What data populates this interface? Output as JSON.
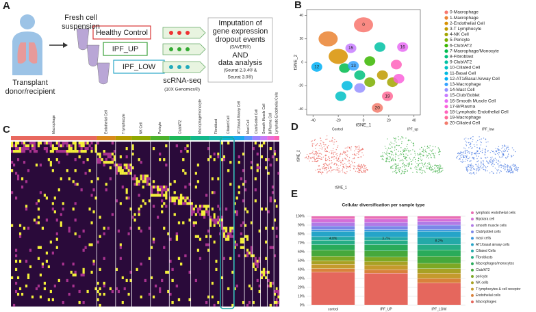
{
  "panel_labels": [
    "A",
    "B",
    "C",
    "D",
    "E"
  ],
  "workflow": {
    "fresh_cell": [
      "Fresh cell",
      "suspension"
    ],
    "samples": [
      "Healthy Control",
      "IPF_UP",
      "IPF_LOW"
    ],
    "donor": [
      "Transplant",
      "donor/recipient"
    ],
    "sequencing": [
      "scRNA-seq",
      "(10X Genomics®)"
    ],
    "analysis": [
      "Imputation of",
      "gene expression",
      "dropout events",
      "(SAVER®)",
      "AND",
      "data analysis",
      "(Seurat 2.3.4® &",
      "Seurat 3.0®)"
    ]
  },
  "heatmap": {
    "clusters": [
      {
        "name": "Macrophage",
        "color": "#e8685f"
      },
      {
        "name": "Endothelial Cell",
        "color": "#d98a1c"
      },
      {
        "name": "T lymphocyte",
        "color": "#b59c00"
      },
      {
        "name": "NK Cell",
        "color": "#8fa800"
      },
      {
        "name": "Pericyte",
        "color": "#4cb22c"
      },
      {
        "name": "Club/AT2",
        "color": "#1db85a"
      },
      {
        "name": "Macrophage/monocyte",
        "color": "#13b98c"
      },
      {
        "name": "Fibroblast",
        "color": "#14b8ad"
      },
      {
        "name": "Ciliated Cell",
        "color": "#12b6cf"
      },
      {
        "name": "AT1/basal Airway Cell",
        "color": "#1aa9ec"
      },
      {
        "name": "Mast Cell",
        "color": "#5b97ff"
      },
      {
        "name": "Club/Goblet Cell",
        "color": "#9d84ff"
      },
      {
        "name": "Smooth Muscle Cell",
        "color": "#c97bf5"
      },
      {
        "name": "B/Plasma Cell",
        "color": "#ec6bd9"
      },
      {
        "name": "Lymphatic Endothelial Cells",
        "color": "#fb64b5"
      }
    ]
  },
  "sample_tsne": {
    "x_label": "tSNE_1",
    "y_label": "tSNE_2",
    "panels": [
      {
        "title": "Control",
        "color": "#e8544c"
      },
      {
        "title": "IPF_up",
        "color": "#2ea836"
      },
      {
        "title": "IPF_low",
        "color": "#3b6fe0"
      }
    ]
  },
  "chart_data": [
    {
      "type": "scatter",
      "x_label": "tSNE_1",
      "y_label": "tSNE_2",
      "xlim": [
        -45,
        45
      ],
      "ylim": [
        -45,
        45
      ],
      "xticks": [
        -40,
        -20,
        0,
        20,
        40
      ],
      "yticks": [
        -40,
        -20,
        0,
        20,
        40
      ],
      "series": [
        {
          "name": "0-Macrophage",
          "color": "#F8766D",
          "x": [
            0
          ],
          "values": [
            32
          ],
          "label": "0"
        },
        {
          "name": "1-Macrophage",
          "color": "#EA8331",
          "x": [
            -28
          ],
          "values": [
            20
          ]
        },
        {
          "name": "2-Endothelial Cell",
          "color": "#D89000",
          "x": [
            -20
          ],
          "values": [
            5
          ]
        },
        {
          "name": "3-T Lymphocyte",
          "color": "#C09B00",
          "x": [
            15
          ],
          "values": [
            -11
          ]
        },
        {
          "name": "4-NK Cell",
          "color": "#A3A500",
          "x": [
            23
          ],
          "values": [
            -17
          ]
        },
        {
          "name": "5-Pericyte",
          "color": "#7CAE00",
          "x": [
            5
          ],
          "values": [
            -17
          ]
        },
        {
          "name": "6-Club/AT2",
          "color": "#39B600",
          "x": [
            5
          ],
          "values": [
            1
          ]
        },
        {
          "name": "7-Macrophage/Monocyte",
          "color": "#00BB4E",
          "x": [
            -15
          ],
          "values": [
            -5
          ]
        },
        {
          "name": "8-Fibroblast",
          "color": "#00BF7D",
          "x": [
            -3
          ],
          "values": [
            -11
          ]
        },
        {
          "name": "9-Club/AT2",
          "color": "#00C1A3",
          "x": [
            13
          ],
          "values": [
            13
          ]
        },
        {
          "name": "10-Ciliated Cell",
          "color": "#00BFC4",
          "x": [
            -18
          ],
          "values": [
            -29
          ]
        },
        {
          "name": "11-Basal Cell",
          "color": "#00BAE0",
          "x": [
            -13
          ],
          "values": [
            -20
          ]
        },
        {
          "name": "12-AT1/Basal Airway Cell",
          "color": "#00B0F6",
          "x": [
            -37
          ],
          "values": [
            -4
          ],
          "label": "12"
        },
        {
          "name": "13-Macrophage",
          "color": "#35A2FF",
          "x": [
            -8
          ],
          "values": [
            -3
          ],
          "label": "13"
        },
        {
          "name": "14-Mast Cell",
          "color": "#9590FF",
          "x": [
            -3
          ],
          "values": [
            -22
          ]
        },
        {
          "name": "15-Club/Goblet",
          "color": "#C77CFF",
          "x": [
            -10
          ],
          "values": [
            12
          ],
          "label": "15"
        },
        {
          "name": "16-Smooth Muscle Cell",
          "color": "#E76BF3",
          "x": [
            31
          ],
          "values": [
            13
          ],
          "label": "16"
        },
        {
          "name": "17-B/Plasma",
          "color": "#FA62DB",
          "x": [
            28
          ],
          "values": [
            -14
          ]
        },
        {
          "name": "18-Lymphatic Endothelial Cell",
          "color": "#FF62BC",
          "x": [
            26
          ],
          "values": [
            -2
          ]
        },
        {
          "name": "19-Macrophage",
          "color": "#FF6A98",
          "x": [
            19
          ],
          "values": [
            -29
          ],
          "label": "19"
        },
        {
          "name": "20-Ciliated Cell",
          "color": "#F27A6B",
          "x": [
            11
          ],
          "values": [
            -39
          ],
          "label": "20"
        }
      ]
    },
    {
      "type": "stacked_bar",
      "title": "Cellular diversification  per sample type",
      "categories": [
        "control",
        "IPF_UP",
        "IPF_LOW"
      ],
      "ylim": [
        0,
        100
      ],
      "yticks": [
        {
          "value": 0,
          "label": "0%"
        },
        {
          "value": 10,
          "label": "10%"
        },
        {
          "value": 20,
          "label": "20%"
        },
        {
          "value": 30,
          "label": "30%"
        },
        {
          "value": 40,
          "label": "40%"
        },
        {
          "value": 50,
          "label": "50%"
        },
        {
          "value": 60,
          "label": "60%"
        },
        {
          "value": 70,
          "label": "70%"
        },
        {
          "value": 80,
          "label": "80%"
        },
        {
          "value": 90,
          "label": "90%"
        },
        {
          "value": 100,
          "label": "100%"
        }
      ],
      "series": [
        {
          "name": "Macrophages",
          "color": "#e5675d",
          "values": [
            37,
            36,
            25
          ]
        },
        {
          "name": "Endothelial cells",
          "color": "#d9823b",
          "values": [
            4,
            4,
            5
          ]
        },
        {
          "name": "T lymphocytes & cell receptor",
          "color": "#c49a2c",
          "values": [
            5,
            5,
            6
          ]
        },
        {
          "name": "NK cells",
          "color": "#a8a124",
          "values": [
            4,
            4,
            5
          ]
        },
        {
          "name": "pericyte",
          "color": "#7da824",
          "values": [
            5,
            5,
            6
          ]
        },
        {
          "name": "Club/AT2",
          "color": "#46a83c",
          "values": [
            7,
            7,
            8
          ]
        },
        {
          "name": "Macrophages/monocytes",
          "color": "#2aab5a",
          "values": [
            6,
            7,
            7
          ]
        },
        {
          "name": "Fibroblasts",
          "color": "#26ad86",
          "values": [
            5,
            5,
            6
          ]
        },
        {
          "name": "Ciliated Cells",
          "color": "#24a9a8",
          "values": [
            4.0,
            3.7,
            8.2
          ],
          "value_labels": [
            "4.0%",
            "3.7%",
            "8.2%"
          ]
        },
        {
          "name": "AT1/basal airway cells",
          "color": "#25a4c8",
          "values": [
            6,
            6.3,
            6.8
          ]
        },
        {
          "name": "mast cells",
          "color": "#3b96de",
          "values": [
            2,
            2,
            2
          ]
        },
        {
          "name": "Club/goblet cells",
          "color": "#7b86e8",
          "values": [
            4,
            4,
            5
          ]
        },
        {
          "name": "smooth muscle cells",
          "color": "#b07ae6",
          "values": [
            4,
            4,
            4
          ]
        },
        {
          "name": "Bipolara cell",
          "color": "#d46ed8",
          "values": [
            4,
            4,
            3
          ]
        },
        {
          "name": "lymphatic endothelial cells",
          "color": "#e86eb4",
          "values": [
            3,
            3,
            3
          ]
        }
      ]
    }
  ]
}
